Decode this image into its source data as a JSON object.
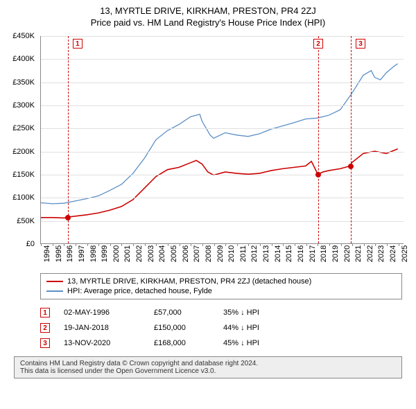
{
  "title": "13, MYRTLE DRIVE, KIRKHAM, PRESTON, PR4 2ZJ",
  "subtitle": "Price paid vs. HM Land Registry's House Price Index (HPI)",
  "chart": {
    "type": "line",
    "x_years": [
      1994,
      1995,
      1996,
      1997,
      1998,
      1999,
      2000,
      2001,
      2002,
      2003,
      2004,
      2005,
      2006,
      2007,
      2008,
      2009,
      2010,
      2011,
      2012,
      2013,
      2014,
      2015,
      2016,
      2017,
      2018,
      2019,
      2020,
      2021,
      2022,
      2023,
      2024,
      2025
    ],
    "y_ticks": [
      0,
      50000,
      100000,
      150000,
      200000,
      250000,
      300000,
      350000,
      400000,
      450000
    ],
    "y_tick_labels": [
      "£0",
      "£50K",
      "£100K",
      "£150K",
      "£200K",
      "£250K",
      "£300K",
      "£350K",
      "£400K",
      "£450K"
    ],
    "ylim": [
      0,
      450000
    ],
    "xlim": [
      1994,
      2025.5
    ],
    "grid_color": "#e0e0e0",
    "background_color": "#ffffff",
    "axis_color": "#888888",
    "series": [
      {
        "name": "property",
        "label": "13, MYRTLE DRIVE, KIRKHAM, PRESTON, PR4 2ZJ (detached house)",
        "color": "#cc0000",
        "line_width": 1.6,
        "points": [
          [
            1994,
            56000
          ],
          [
            1995,
            56000
          ],
          [
            1996,
            55000
          ],
          [
            1996.33,
            57000
          ],
          [
            1997,
            59000
          ],
          [
            1998,
            62000
          ],
          [
            1999,
            66000
          ],
          [
            2000,
            72000
          ],
          [
            2001,
            80000
          ],
          [
            2002,
            95000
          ],
          [
            2003,
            120000
          ],
          [
            2004,
            145000
          ],
          [
            2005,
            160000
          ],
          [
            2006,
            165000
          ],
          [
            2007,
            175000
          ],
          [
            2007.5,
            180000
          ],
          [
            2008,
            172000
          ],
          [
            2008.5,
            155000
          ],
          [
            2009,
            148000
          ],
          [
            2010,
            155000
          ],
          [
            2011,
            152000
          ],
          [
            2012,
            150000
          ],
          [
            2013,
            152000
          ],
          [
            2014,
            158000
          ],
          [
            2015,
            162000
          ],
          [
            2016,
            165000
          ],
          [
            2017,
            168000
          ],
          [
            2017.5,
            178000
          ],
          [
            2018.05,
            150000
          ],
          [
            2018.5,
            155000
          ],
          [
            2019,
            158000
          ],
          [
            2020,
            162000
          ],
          [
            2020.87,
            168000
          ],
          [
            2021,
            175000
          ],
          [
            2022,
            195000
          ],
          [
            2023,
            200000
          ],
          [
            2024,
            195000
          ],
          [
            2024.5,
            200000
          ],
          [
            2025,
            205000
          ]
        ]
      },
      {
        "name": "hpi",
        "label": "HPI: Average price, detached house, Fylde",
        "color": "#5b8fc7",
        "line_width": 1.3,
        "points": [
          [
            1994,
            88000
          ],
          [
            1995,
            86000
          ],
          [
            1996,
            87000
          ],
          [
            1997,
            92000
          ],
          [
            1998,
            97000
          ],
          [
            1999,
            103000
          ],
          [
            2000,
            115000
          ],
          [
            2001,
            128000
          ],
          [
            2002,
            152000
          ],
          [
            2003,
            185000
          ],
          [
            2004,
            225000
          ],
          [
            2005,
            245000
          ],
          [
            2006,
            258000
          ],
          [
            2007,
            275000
          ],
          [
            2007.8,
            280000
          ],
          [
            2008,
            265000
          ],
          [
            2008.7,
            235000
          ],
          [
            2009,
            228000
          ],
          [
            2010,
            240000
          ],
          [
            2011,
            235000
          ],
          [
            2012,
            232000
          ],
          [
            2013,
            238000
          ],
          [
            2014,
            248000
          ],
          [
            2015,
            255000
          ],
          [
            2016,
            262000
          ],
          [
            2017,
            270000
          ],
          [
            2018,
            272000
          ],
          [
            2019,
            278000
          ],
          [
            2020,
            290000
          ],
          [
            2021,
            325000
          ],
          [
            2022,
            365000
          ],
          [
            2022.7,
            375000
          ],
          [
            2023,
            360000
          ],
          [
            2023.5,
            355000
          ],
          [
            2024,
            370000
          ],
          [
            2024.7,
            385000
          ],
          [
            2025,
            390000
          ]
        ]
      }
    ],
    "markers": [
      {
        "id": "1",
        "x": 1996.33,
        "y": 57000,
        "dot_above": 66000
      },
      {
        "id": "2",
        "x": 2018.05,
        "y": 150000,
        "dot_above": null
      },
      {
        "id": "3",
        "x": 2020.87,
        "y": 168000,
        "dot_above": null
      }
    ],
    "marker_line_color": "#cc0000",
    "marker_dot_color": "#cc0000",
    "marker_badge_border": "#cc0000",
    "marker_badge_text": "#cc0000",
    "label_fontsize": 11
  },
  "legend": {
    "items": [
      {
        "color": "#cc0000",
        "label": "13, MYRTLE DRIVE, KIRKHAM, PRESTON, PR4 2ZJ (detached house)"
      },
      {
        "color": "#5b8fc7",
        "label": "HPI: Average price, detached house, Fylde"
      }
    ]
  },
  "transactions": [
    {
      "id": "1",
      "date": "02-MAY-1996",
      "price": "£57,000",
      "delta": "35% ↓ HPI"
    },
    {
      "id": "2",
      "date": "19-JAN-2018",
      "price": "£150,000",
      "delta": "44% ↓ HPI"
    },
    {
      "id": "3",
      "date": "13-NOV-2020",
      "price": "£168,000",
      "delta": "45% ↓ HPI"
    }
  ],
  "footer": {
    "line1": "Contains HM Land Registry data © Crown copyright and database right 2024.",
    "line2": "This data is licensed under the Open Government Licence v3.0."
  }
}
